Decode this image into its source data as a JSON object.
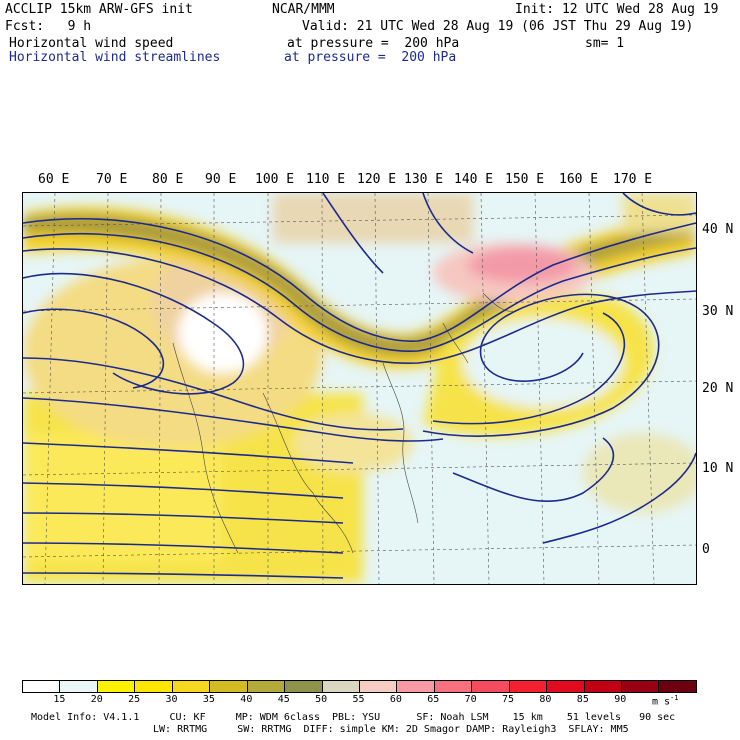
{
  "header": {
    "model_line": "ACCLIP 15km ARW-GFS init",
    "institution": "NCAR/MMM",
    "init": "Init: 12 UTC Wed 28 Aug 19",
    "fcst": "Fcst:   9 h",
    "valid": "Valid: 21 UTC Wed 28 Aug 19 (06 JST Thu 29 Aug 19)",
    "field1_name": "Horizontal wind speed",
    "field1_level": "at pressure =  200 hPa",
    "smoothing": "sm= 1",
    "field2_name": "Horizontal wind streamlines",
    "field2_level": "at pressure =  200 hPa"
  },
  "map": {
    "lon_labels": [
      "60 E",
      "70 E",
      "80 E",
      "90 E",
      "100 E",
      "110 E",
      "120 E",
      "130 E",
      "140 E",
      "150 E",
      "160 E",
      "170 E"
    ],
    "lat_labels": [
      "40 N",
      "30 N",
      "20 N",
      "10 N",
      "0"
    ]
  },
  "colorbar": {
    "labels": [
      "15",
      "20",
      "25",
      "30",
      "35",
      "40",
      "45",
      "50",
      "55",
      "60",
      "65",
      "70",
      "75",
      "80",
      "85",
      "90"
    ],
    "units": "m s",
    "units_exp": "-1",
    "colors": [
      "#ffffff",
      "#eaf7f7",
      "#fef200",
      "#fee600",
      "#f4d720",
      "#d2ba22",
      "#b3aa3a",
      "#8e934c",
      "#d9d7bf",
      "#f7cdc3",
      "#f89aa6",
      "#f6707f",
      "#f44b5e",
      "#f41f2f",
      "#e10a1e",
      "#c10014",
      "#960012",
      "#6d000e"
    ]
  },
  "footer": {
    "line1": "Model Info: V4.1.1     CU: KF     MP: WDM 6class  PBL: YSU      SF: Noah LSM    15 km    51 levels   90 sec",
    "line2": "LW: RRTMG     SW: RRTMG  DIFF: simple KM: 2D Smagor DAMP: Rayleigh3  SFLAY: MM5"
  }
}
